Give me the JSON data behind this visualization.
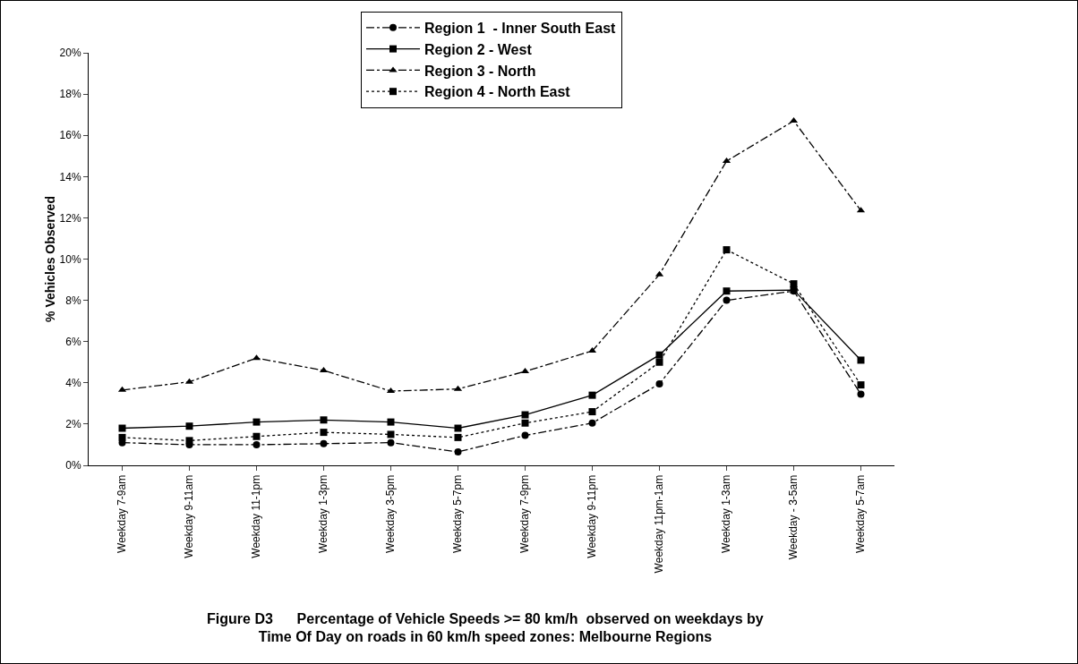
{
  "chart_data": {
    "type": "line",
    "title": "Figure D3      Percentage of Vehicle Speeds >= 80 km/h  observed on weekdays by\nTime Of Day on roads in 60 km/h speed zones: Melbourne Regions",
    "ylabel": "% Vehicles Observed",
    "categories": [
      "Weekday 7-9am",
      "Weekday 9-11am",
      "Weekday 11-1pm",
      "Weekday 1-3pm",
      "Weekday 3-5pm",
      "Weekday 5-7pm",
      "Weekday 7-9pm",
      "Weekday 9-11pm",
      "Weekday 11pm-1am",
      "Weekday 1-3am",
      "Weekday - 3-5am",
      "Weekday 5-7am"
    ],
    "series": [
      {
        "name": "Region 1  - Inner South East",
        "color": "#000000",
        "marker": "circle",
        "line_style": "dashed",
        "values": [
          1.1,
          1.0,
          1.0,
          1.05,
          1.1,
          0.65,
          1.45,
          2.05,
          3.95,
          8.0,
          8.45,
          3.45
        ]
      },
      {
        "name": "Region 2 - West",
        "color": "#000000",
        "marker": "square",
        "line_style": "solid",
        "values": [
          1.8,
          1.9,
          2.1,
          2.2,
          2.1,
          1.8,
          2.45,
          3.4,
          5.35,
          8.45,
          8.5,
          5.1
        ]
      },
      {
        "name": "Region 3 - North",
        "color": "#000000",
        "marker": "triangle",
        "line_style": "dashed",
        "values": [
          3.65,
          4.05,
          5.2,
          4.6,
          3.6,
          3.7,
          4.55,
          5.55,
          9.25,
          14.75,
          16.7,
          12.35
        ]
      },
      {
        "name": "Region 4 - North East",
        "color": "#000000",
        "marker": "square",
        "line_style": "dotted",
        "values": [
          1.35,
          1.2,
          1.4,
          1.6,
          1.5,
          1.35,
          2.05,
          2.6,
          5.0,
          10.45,
          8.8,
          3.9
        ]
      }
    ],
    "ylim": [
      0,
      20
    ],
    "yticks": [
      {
        "value": 0,
        "label": "0%"
      },
      {
        "value": 2,
        "label": "2%"
      },
      {
        "value": 4,
        "label": "4%"
      },
      {
        "value": 6,
        "label": "6%"
      },
      {
        "value": 8,
        "label": "8%"
      },
      {
        "value": 10,
        "label": "10%"
      },
      {
        "value": 12,
        "label": "12%"
      },
      {
        "value": 14,
        "label": "14%"
      },
      {
        "value": 16,
        "label": "16%"
      },
      {
        "value": 18,
        "label": "18%"
      },
      {
        "value": 20,
        "label": "20%"
      }
    ],
    "grid": false,
    "legend": "top"
  }
}
